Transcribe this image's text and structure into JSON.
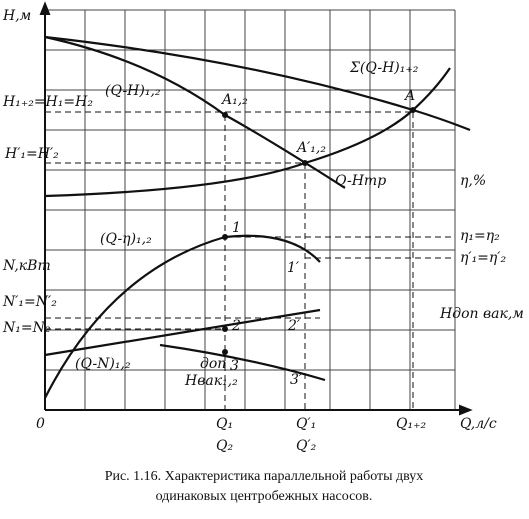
{
  "labels": [
    "H,м",
    "Σ(Q-H)₁₊₂",
    "(Q-H)₁,₂",
    "H₁₊₂=H₁=H₂",
    "A₁,₂",
    "A",
    "A′₁,₂",
    "H′₁=H′₂",
    "Q-Hтр",
    "η,%",
    "(Q-η)₁,₂",
    "1",
    "η₁=η₂",
    "N,кВт",
    "1′",
    "η′₁=η′₂",
    "N′₁=N′₂",
    "N₁=N₂",
    "2",
    "2′",
    "Hдоп вак,м",
    "(Q-N)₁,₂",
    "доп",
    "Hвак₁,₂",
    "3",
    "3′",
    "0",
    "Q₁",
    "Q₂",
    "Q′₁",
    "Q′₂",
    "Q₁₊₂",
    "Q,л/с"
  ],
  "caption": [
    "Рис. 1.16. Характеристика параллельной работы двух",
    "одинаковых центробежных насосов."
  ]
}
